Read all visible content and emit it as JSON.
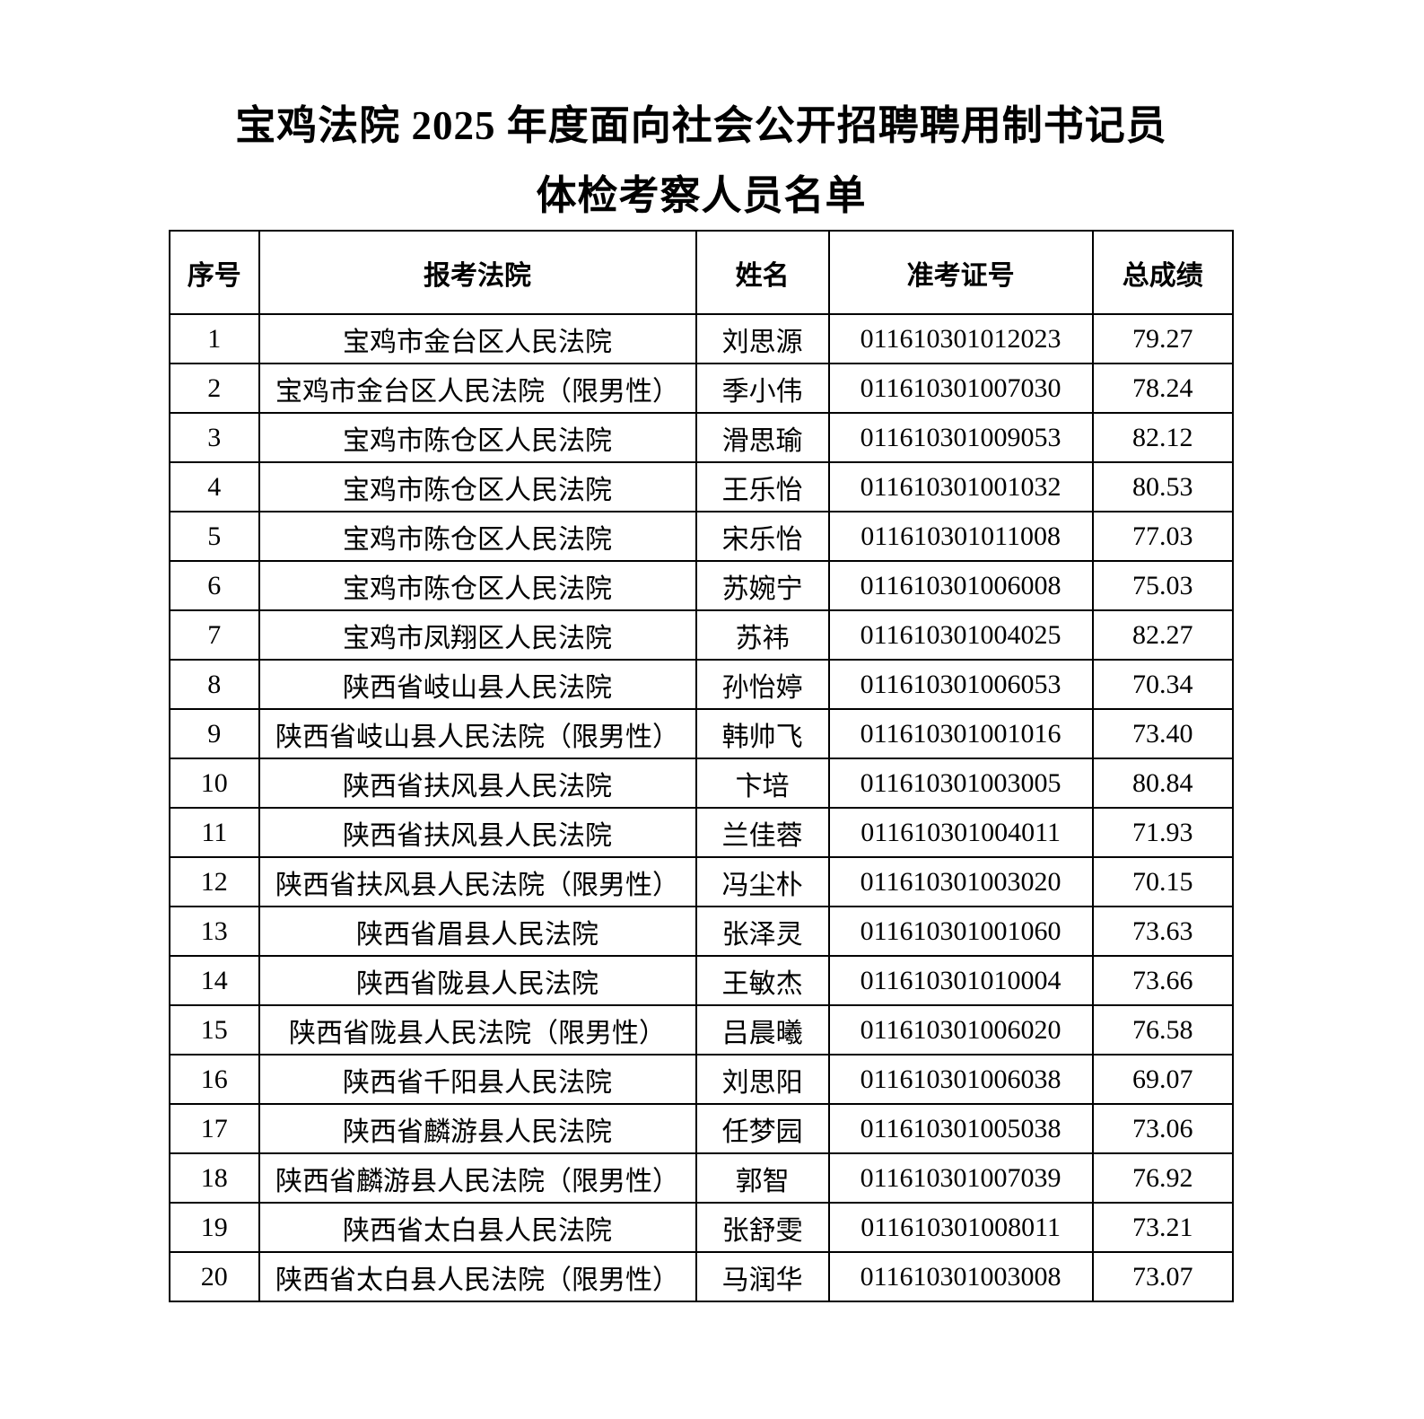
{
  "title": {
    "line1": "宝鸡法院 2025 年度面向社会公开招聘聘用制书记员",
    "line2": "体检考察人员名单"
  },
  "table": {
    "columns": [
      {
        "key": "no",
        "label": "序号"
      },
      {
        "key": "court",
        "label": "报考法院"
      },
      {
        "key": "name",
        "label": "姓名"
      },
      {
        "key": "ticket",
        "label": "准考证号"
      },
      {
        "key": "score",
        "label": "总成绩"
      }
    ],
    "rows": [
      {
        "no": "1",
        "court": "宝鸡市金台区人民法院",
        "name": "刘思源",
        "ticket": "011610301012023",
        "score": "79.27"
      },
      {
        "no": "2",
        "court": "宝鸡市金台区人民法院（限男性）",
        "name": "季小伟",
        "ticket": "011610301007030",
        "score": "78.24"
      },
      {
        "no": "3",
        "court": "宝鸡市陈仓区人民法院",
        "name": "滑思瑜",
        "ticket": "011610301009053",
        "score": "82.12"
      },
      {
        "no": "4",
        "court": "宝鸡市陈仓区人民法院",
        "name": "王乐怡",
        "ticket": "011610301001032",
        "score": "80.53"
      },
      {
        "no": "5",
        "court": "宝鸡市陈仓区人民法院",
        "name": "宋乐怡",
        "ticket": "011610301011008",
        "score": "77.03"
      },
      {
        "no": "6",
        "court": "宝鸡市陈仓区人民法院",
        "name": "苏婉宁",
        "ticket": "011610301006008",
        "score": "75.03"
      },
      {
        "no": "7",
        "court": "宝鸡市凤翔区人民法院",
        "name": "苏祎",
        "ticket": "011610301004025",
        "score": "82.27"
      },
      {
        "no": "8",
        "court": "陕西省岐山县人民法院",
        "name": "孙怡婷",
        "ticket": "011610301006053",
        "score": "70.34"
      },
      {
        "no": "9",
        "court": "陕西省岐山县人民法院（限男性）",
        "name": "韩帅飞",
        "ticket": "011610301001016",
        "score": "73.40"
      },
      {
        "no": "10",
        "court": "陕西省扶风县人民法院",
        "name": "卞培",
        "ticket": "011610301003005",
        "score": "80.84"
      },
      {
        "no": "11",
        "court": "陕西省扶风县人民法院",
        "name": "兰佳蓉",
        "ticket": "011610301004011",
        "score": "71.93"
      },
      {
        "no": "12",
        "court": "陕西省扶风县人民法院（限男性）",
        "name": "冯尘朴",
        "ticket": "011610301003020",
        "score": "70.15"
      },
      {
        "no": "13",
        "court": "陕西省眉县人民法院",
        "name": "张泽灵",
        "ticket": "011610301001060",
        "score": "73.63"
      },
      {
        "no": "14",
        "court": "陕西省陇县人民法院",
        "name": "王敏杰",
        "ticket": "011610301010004",
        "score": "73.66"
      },
      {
        "no": "15",
        "court": "陕西省陇县人民法院（限男性）",
        "name": "吕晨曦",
        "ticket": "011610301006020",
        "score": "76.58"
      },
      {
        "no": "16",
        "court": "陕西省千阳县人民法院",
        "name": "刘思阳",
        "ticket": "011610301006038",
        "score": "69.07"
      },
      {
        "no": "17",
        "court": "陕西省麟游县人民法院",
        "name": "任梦园",
        "ticket": "011610301005038",
        "score": "73.06"
      },
      {
        "no": "18",
        "court": "陕西省麟游县人民法院（限男性）",
        "name": "郭智",
        "ticket": "011610301007039",
        "score": "76.92"
      },
      {
        "no": "19",
        "court": "陕西省太白县人民法院",
        "name": "张舒雯",
        "ticket": "011610301008011",
        "score": "73.21"
      },
      {
        "no": "20",
        "court": "陕西省太白县人民法院（限男性）",
        "name": "马润华",
        "ticket": "011610301003008",
        "score": "73.07"
      }
    ]
  }
}
